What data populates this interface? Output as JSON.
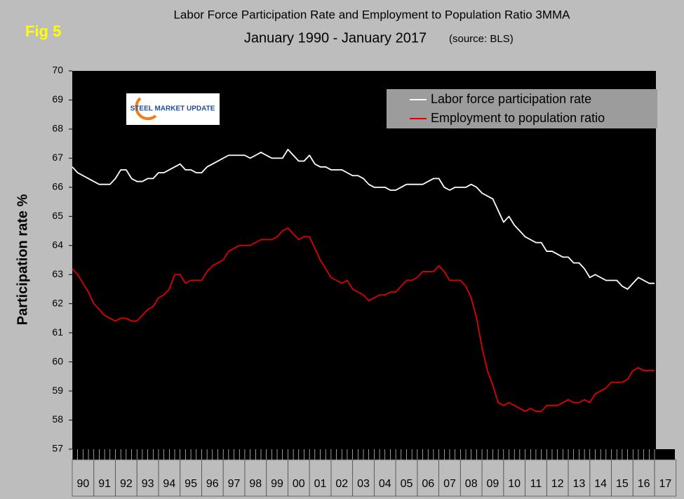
{
  "chart_data": {
    "type": "line",
    "figure_label": "Fig 5",
    "title": "Labor Force Participation Rate and Employment to Population Ratio 3MMA",
    "subtitle": "January 1990 - January 2017",
    "source": "(source: BLS)",
    "logo": "STEEL MARKET UPDATE",
    "y_label": "Participation rate %",
    "ylim": [
      57,
      70
    ],
    "yticks": [
      57,
      58,
      59,
      60,
      61,
      62,
      63,
      64,
      65,
      66,
      67,
      68,
      69,
      70
    ],
    "legend": "top-right",
    "categories": [
      "90",
      null,
      null,
      null,
      "91",
      null,
      null,
      null,
      "92",
      null,
      null,
      null,
      "93",
      null,
      null,
      null,
      "94",
      null,
      null,
      null,
      "95",
      null,
      null,
      null,
      "96",
      null,
      null,
      null,
      "97",
      null,
      null,
      null,
      "98",
      null,
      null,
      null,
      "99",
      null,
      null,
      null,
      "00",
      null,
      null,
      null,
      "01",
      null,
      null,
      null,
      "02",
      null,
      null,
      null,
      "03",
      null,
      null,
      null,
      "04",
      null,
      null,
      null,
      "05",
      null,
      null,
      null,
      "06",
      null,
      null,
      null,
      "07",
      null,
      null,
      null,
      "08",
      null,
      null,
      null,
      "09",
      null,
      null,
      null,
      "10",
      null,
      null,
      null,
      "11",
      null,
      null,
      null,
      "12",
      null,
      null,
      null,
      "13",
      null,
      null,
      null,
      "14",
      null,
      null,
      null,
      "15",
      null,
      null,
      null,
      "16",
      null,
      null,
      null,
      "17"
    ],
    "series": [
      {
        "name": "Labor force participation rate",
        "color": "#ffffff",
        "values": [
          66.7,
          66.5,
          66.4,
          66.3,
          66.2,
          66.1,
          66.1,
          66.1,
          66.3,
          66.6,
          66.6,
          66.3,
          66.2,
          66.2,
          66.3,
          66.3,
          66.5,
          66.5,
          66.6,
          66.7,
          66.8,
          66.6,
          66.6,
          66.5,
          66.5,
          66.7,
          66.8,
          66.9,
          67.0,
          67.1,
          67.1,
          67.1,
          67.1,
          67.0,
          67.1,
          67.2,
          67.1,
          67.0,
          67.0,
          67.0,
          67.3,
          67.1,
          66.9,
          66.9,
          67.1,
          66.8,
          66.7,
          66.7,
          66.6,
          66.6,
          66.6,
          66.5,
          66.4,
          66.4,
          66.3,
          66.1,
          66.0,
          66.0,
          66.0,
          65.9,
          65.9,
          66.0,
          66.1,
          66.1,
          66.1,
          66.1,
          66.2,
          66.3,
          66.3,
          66.0,
          65.9,
          66.0,
          66.0,
          66.0,
          66.1,
          66.0,
          65.8,
          65.7,
          65.6,
          65.2,
          64.8,
          65.0,
          64.7,
          64.5,
          64.3,
          64.2,
          64.1,
          64.1,
          63.8,
          63.8,
          63.7,
          63.6,
          63.6,
          63.4,
          63.4,
          63.2,
          62.9,
          63.0,
          62.9,
          62.8,
          62.8,
          62.8,
          62.6,
          62.5,
          62.7,
          62.9,
          62.8,
          62.7,
          62.7
        ]
      },
      {
        "name": "Employment to population ratio",
        "color": "#e00000",
        "values": [
          63.2,
          63.0,
          62.7,
          62.4,
          62.0,
          61.8,
          61.6,
          61.5,
          61.4,
          61.5,
          61.5,
          61.4,
          61.4,
          61.6,
          61.8,
          61.9,
          62.2,
          62.3,
          62.5,
          63.0,
          63.0,
          62.7,
          62.8,
          62.8,
          62.8,
          63.1,
          63.3,
          63.4,
          63.5,
          63.8,
          63.9,
          64.0,
          64.0,
          64.0,
          64.1,
          64.2,
          64.2,
          64.2,
          64.3,
          64.5,
          64.6,
          64.4,
          64.2,
          64.3,
          64.3,
          63.9,
          63.5,
          63.2,
          62.9,
          62.8,
          62.7,
          62.8,
          62.5,
          62.4,
          62.3,
          62.1,
          62.2,
          62.3,
          62.3,
          62.4,
          62.4,
          62.6,
          62.8,
          62.8,
          62.9,
          63.1,
          63.1,
          63.1,
          63.3,
          63.1,
          62.8,
          62.8,
          62.8,
          62.6,
          62.2,
          61.5,
          60.5,
          59.7,
          59.2,
          58.6,
          58.5,
          58.6,
          58.5,
          58.4,
          58.3,
          58.4,
          58.3,
          58.3,
          58.5,
          58.5,
          58.5,
          58.6,
          58.7,
          58.6,
          58.6,
          58.7,
          58.6,
          58.9,
          59.0,
          59.1,
          59.3,
          59.3,
          59.3,
          59.4,
          59.7,
          59.8,
          59.7,
          59.7,
          59.7
        ]
      }
    ]
  }
}
